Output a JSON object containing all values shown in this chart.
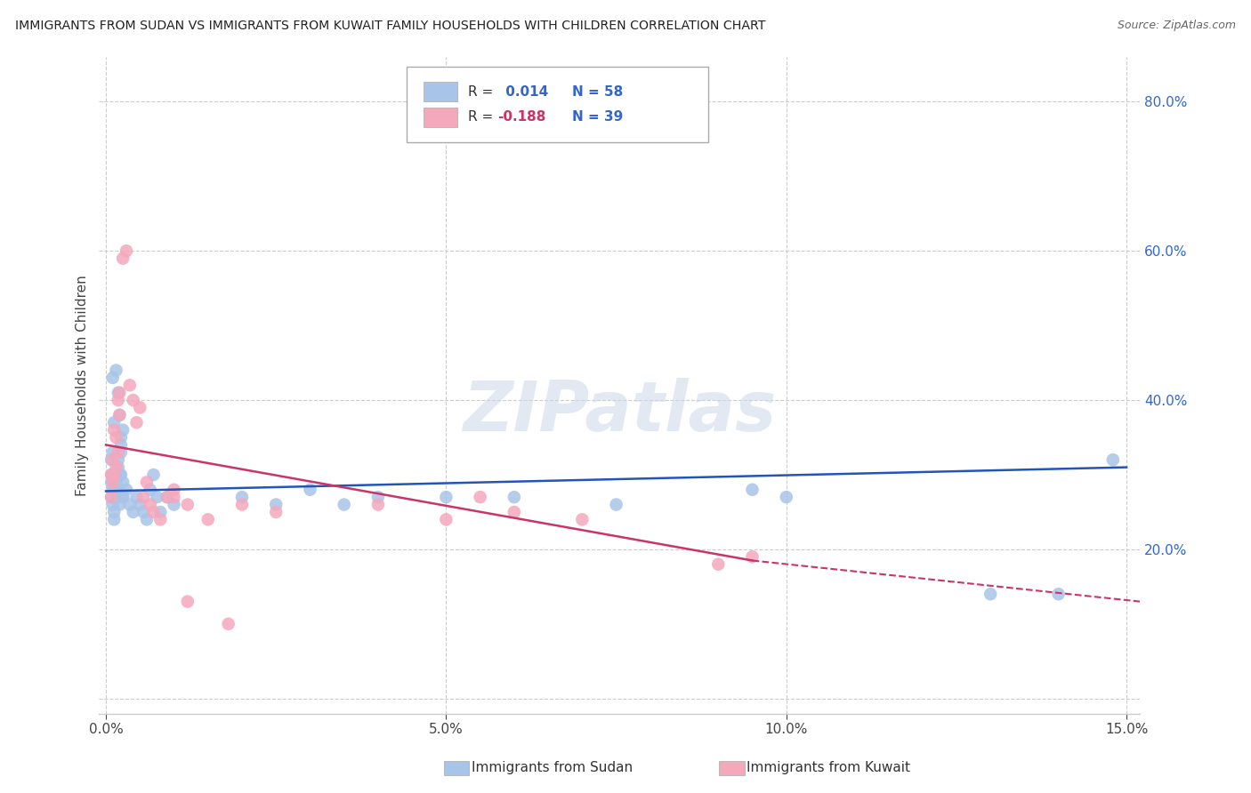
{
  "title": "IMMIGRANTS FROM SUDAN VS IMMIGRANTS FROM KUWAIT FAMILY HOUSEHOLDS WITH CHILDREN CORRELATION CHART",
  "source": "Source: ZipAtlas.com",
  "xlabel_sudan": "Immigrants from Sudan",
  "xlabel_kuwait": "Immigrants from Kuwait",
  "ylabel": "Family Households with Children",
  "xlim": [
    -0.001,
    0.152
  ],
  "ylim": [
    -0.02,
    0.86
  ],
  "yticks": [
    0.0,
    0.2,
    0.4,
    0.6,
    0.8
  ],
  "ytick_labels": [
    "",
    "20.0%",
    "40.0%",
    "60.0%",
    "80.0%"
  ],
  "xtick_vals": [
    0.0,
    0.05,
    0.1,
    0.15
  ],
  "xtick_labels": [
    "0.0%",
    "5.0%",
    "10.0%",
    "15.0%"
  ],
  "r_sudan": 0.014,
  "n_sudan": 58,
  "r_kuwait": -0.188,
  "n_kuwait": 39,
  "sudan_color": "#a8c4e8",
  "kuwait_color": "#f4a8bc",
  "trend_sudan_color": "#2255bb",
  "trend_kuwait_color": "#cc3366",
  "watermark_color": "#ccd8e8",
  "watermark_text": "ZIPatlas",
  "sudan_x": [
    0.0008,
    0.001,
    0.0012,
    0.0015,
    0.0018,
    0.002,
    0.0022,
    0.0025,
    0.0008,
    0.001,
    0.0012,
    0.0015,
    0.0018,
    0.002,
    0.0022,
    0.0025,
    0.0008,
    0.001,
    0.0012,
    0.0015,
    0.0018,
    0.002,
    0.0022,
    0.0025,
    0.0008,
    0.001,
    0.0012,
    0.0015,
    0.0018,
    0.002,
    0.0022,
    0.0025,
    0.003,
    0.0035,
    0.004,
    0.0045,
    0.005,
    0.0055,
    0.006,
    0.0065,
    0.007,
    0.0075,
    0.008,
    0.009,
    0.01,
    0.02,
    0.025,
    0.03,
    0.035,
    0.04,
    0.05,
    0.06,
    0.075,
    0.095,
    0.1,
    0.13,
    0.14,
    0.148
  ],
  "sudan_y": [
    0.3,
    0.43,
    0.37,
    0.44,
    0.41,
    0.38,
    0.35,
    0.36,
    0.32,
    0.33,
    0.28,
    0.29,
    0.31,
    0.3,
    0.33,
    0.27,
    0.27,
    0.28,
    0.25,
    0.3,
    0.32,
    0.3,
    0.34,
    0.29,
    0.29,
    0.26,
    0.24,
    0.28,
    0.27,
    0.26,
    0.3,
    0.27,
    0.28,
    0.26,
    0.25,
    0.27,
    0.26,
    0.25,
    0.24,
    0.28,
    0.3,
    0.27,
    0.25,
    0.27,
    0.26,
    0.27,
    0.26,
    0.28,
    0.26,
    0.27,
    0.27,
    0.27,
    0.26,
    0.28,
    0.27,
    0.14,
    0.14,
    0.32
  ],
  "kuwait_x": [
    0.0008,
    0.001,
    0.0012,
    0.0015,
    0.0018,
    0.002,
    0.0008,
    0.001,
    0.0012,
    0.0015,
    0.0018,
    0.002,
    0.0025,
    0.003,
    0.0035,
    0.004,
    0.0045,
    0.005,
    0.0055,
    0.006,
    0.0065,
    0.007,
    0.008,
    0.009,
    0.01,
    0.012,
    0.015,
    0.02,
    0.025,
    0.04,
    0.05,
    0.055,
    0.06,
    0.07,
    0.09,
    0.095,
    0.01,
    0.012,
    0.018
  ],
  "kuwait_y": [
    0.3,
    0.32,
    0.36,
    0.35,
    0.4,
    0.41,
    0.27,
    0.29,
    0.3,
    0.31,
    0.33,
    0.38,
    0.59,
    0.6,
    0.42,
    0.4,
    0.37,
    0.39,
    0.27,
    0.29,
    0.26,
    0.25,
    0.24,
    0.27,
    0.28,
    0.26,
    0.24,
    0.26,
    0.25,
    0.26,
    0.24,
    0.27,
    0.25,
    0.24,
    0.18,
    0.19,
    0.27,
    0.13,
    0.1
  ],
  "trend_sudan": [
    0.0,
    0.278,
    0.15,
    0.31
  ],
  "trend_kuwait_solid": [
    0.0,
    0.34,
    0.095,
    0.185
  ],
  "trend_kuwait_dashed": [
    0.095,
    0.185,
    0.152,
    0.13
  ]
}
